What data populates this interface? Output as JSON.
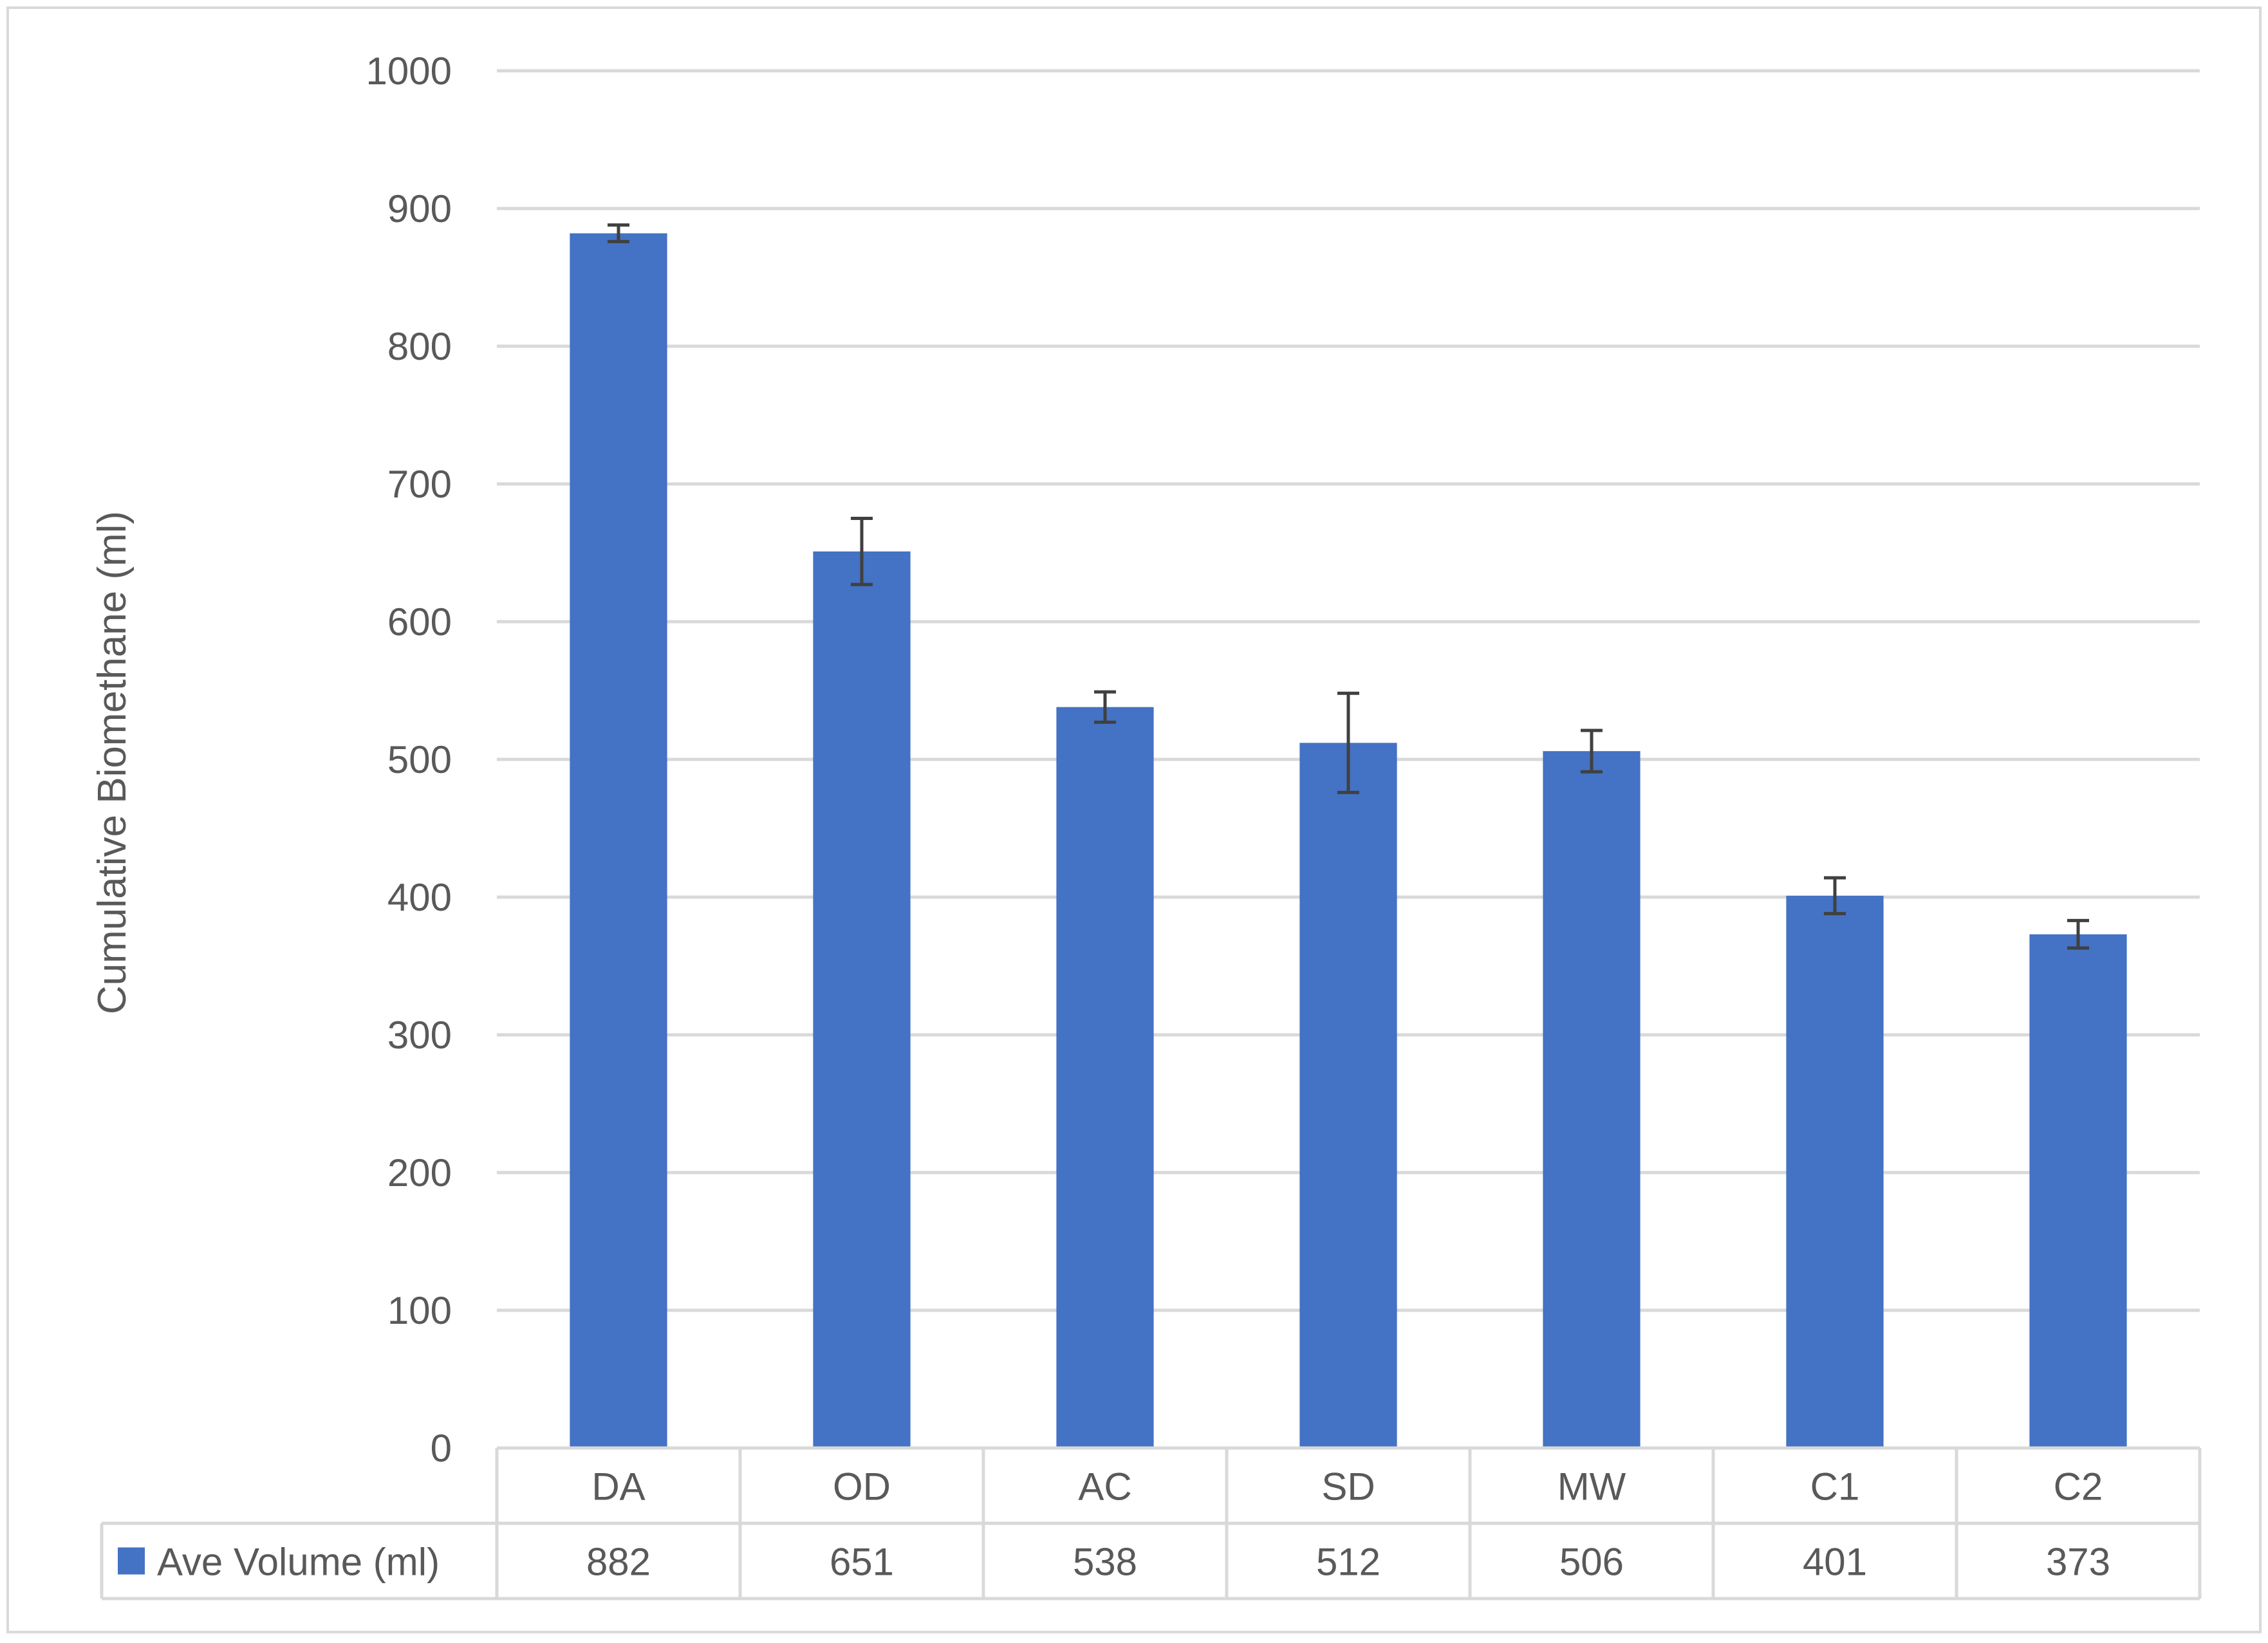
{
  "chart_data": {
    "type": "bar",
    "title": "",
    "xlabel": "",
    "ylabel": "Cumulative Biomethane  (ml)",
    "ylim": [
      0,
      1000
    ],
    "yticks": [
      0,
      100,
      200,
      300,
      400,
      500,
      600,
      700,
      800,
      900,
      1000
    ],
    "grid": true,
    "categories": [
      "DA",
      "OD",
      "AC",
      "SD",
      "MW",
      "C1",
      "C2"
    ],
    "series": [
      {
        "name": "Ave Volume (ml)",
        "values": [
          882,
          651,
          538,
          512,
          506,
          401,
          373
        ],
        "error": [
          6,
          24,
          11,
          36,
          15,
          13,
          10
        ],
        "color": "#4472C4"
      }
    ],
    "data_table": {
      "shown": true,
      "row_label": "Ave Volume (ml)",
      "cells": [
        "882",
        "651",
        "538",
        "512",
        "506",
        "401",
        "373"
      ]
    },
    "colors": {
      "bar": "#4472C4",
      "grid": "#d9d9d9",
      "error_bar": "#404040",
      "text": "#595959",
      "border": "#d9d9d9"
    }
  }
}
